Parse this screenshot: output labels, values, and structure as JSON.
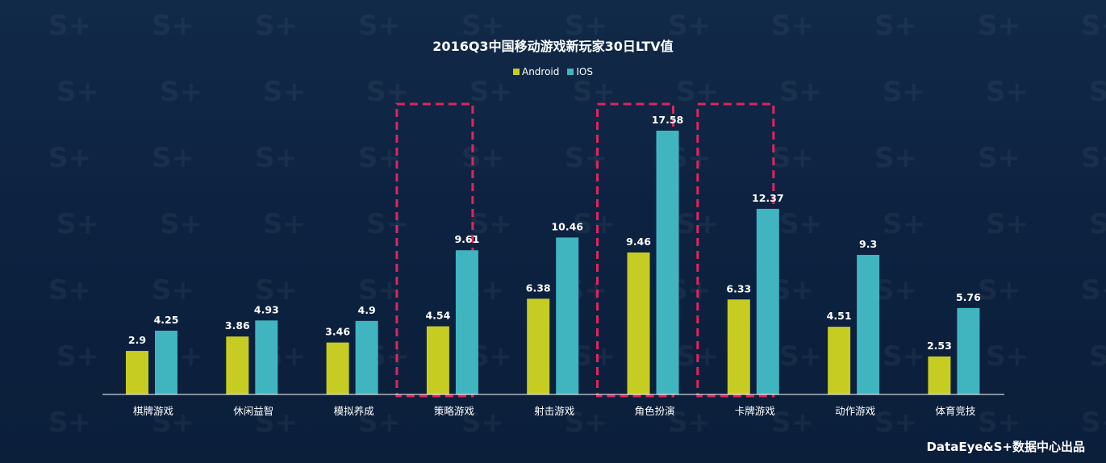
{
  "chart_data": {
    "type": "bar",
    "title": "2016Q3中国移动游戏新玩家30日LTV值",
    "categories": [
      "棋牌游戏",
      "休闲益智",
      "模拟养成",
      "策略游戏",
      "射击游戏",
      "角色扮演",
      "卡牌游戏",
      "动作游戏",
      "体育竞技"
    ],
    "series": [
      {
        "name": "Android",
        "values": [
          2.9,
          3.86,
          3.46,
          4.54,
          6.38,
          9.46,
          6.33,
          4.51,
          2.53
        ]
      },
      {
        "name": "IOS",
        "values": [
          4.25,
          4.93,
          4.9,
          9.61,
          10.46,
          17.58,
          12.37,
          9.3,
          5.76
        ]
      }
    ],
    "value_labels": {
      "Android": [
        "2.9",
        "3.86",
        "3.46",
        "4.54",
        "6.38",
        "9.46",
        "6.33",
        "4.51",
        "2.53"
      ],
      "IOS": [
        "4.25",
        "4.93",
        "4.9",
        "9.61",
        "10.46",
        "17.58",
        "12.37",
        "9.3",
        "5.76"
      ]
    },
    "highlighted_categories": [
      "策略游戏",
      "角色扮演",
      "卡牌游戏"
    ],
    "ylim": [
      0,
      20
    ],
    "grid": false,
    "legend_position": "top-center",
    "xlabel": "",
    "ylabel": ""
  },
  "colors": {
    "background": "#0e2340",
    "Android": "#c7cc23",
    "IOS": "#41b5bf",
    "highlight_box": "#e0245e",
    "axis": "#ffffff",
    "text": "#ffffff"
  },
  "footer": "DataEye&S+数据中心出品",
  "watermark": "S+"
}
